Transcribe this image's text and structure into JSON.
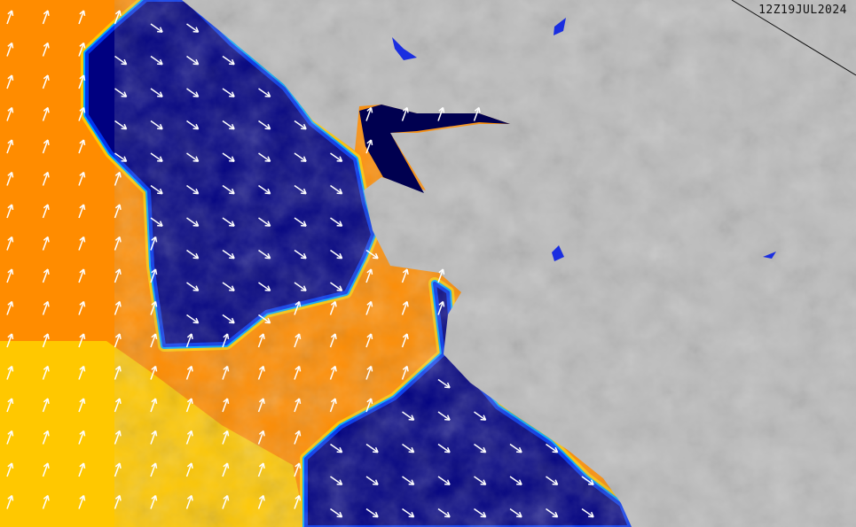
{
  "timestamp": "12Z19JUL2024",
  "colors": {
    "land": "#bcbcbc",
    "orange": "#ff8c00",
    "yellow": "#ffc800",
    "navy": "#000080",
    "blue": "#0033ee",
    "cyan": "#00aaff",
    "lake": "#1a2ee0",
    "arrow": "#ffffff"
  },
  "legend_regions": [
    "orange-zone",
    "yellow-zone",
    "navy-zone"
  ]
}
